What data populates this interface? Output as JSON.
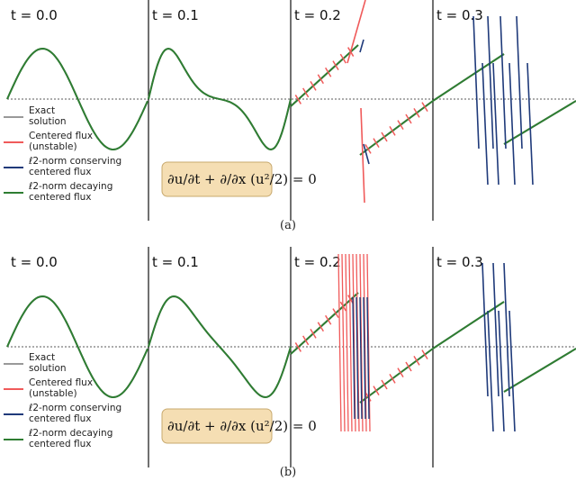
{
  "chart_data": [
    {
      "type": "line",
      "panel_caption": "(a)",
      "equation": "∂u/∂t + ∂/∂x (u²/2) = 0",
      "time_labels": [
        "t = 0.0",
        "t = 0.1",
        "t = 0.2",
        "t = 0.3"
      ],
      "legend": [
        {
          "label": "Exact\nsolution",
          "color": "#999999"
        },
        {
          "label": "Centered flux\n(unstable)",
          "color": "#f05a5a"
        },
        {
          "label": "ℓ2-norm conserving\ncentered flux",
          "color": "#1f3a7a"
        },
        {
          "label": "ℓ2-norm decaying\ncentered flux",
          "color": "#2e7d32"
        }
      ],
      "series": [
        {
          "name": "Exact solution",
          "color": "#999999"
        },
        {
          "name": "Centered flux (unstable)",
          "color": "#f05a5a"
        },
        {
          "name": "ℓ2-norm conserving centered flux",
          "color": "#1f3a7a"
        },
        {
          "name": "ℓ2-norm decaying centered flux",
          "color": "#2e7d32"
        }
      ],
      "baseline": 0,
      "grid": false
    },
    {
      "type": "line",
      "panel_caption": "(b)",
      "equation": "∂u/∂t + ∂/∂x (u²/2) = 0",
      "time_labels": [
        "t = 0.0",
        "t = 0.1",
        "t = 0.2",
        "t = 0.3"
      ],
      "legend": [
        {
          "label": "Exact\nsolution",
          "color": "#999999"
        },
        {
          "label": "Centered flux\n(unstable)",
          "color": "#f05a5a"
        },
        {
          "label": "ℓ2-norm conserving\ncentered flux",
          "color": "#1f3a7a"
        },
        {
          "label": "ℓ2-norm decaying\ncentered flux",
          "color": "#2e7d32"
        }
      ],
      "series": [
        {
          "name": "Exact solution",
          "color": "#999999"
        },
        {
          "name": "Centered flux (unstable)",
          "color": "#f05a5a"
        },
        {
          "name": "ℓ2-norm conserving centered flux",
          "color": "#1f3a7a"
        },
        {
          "name": "ℓ2-norm decaying centered flux",
          "color": "#2e7d32"
        }
      ],
      "baseline": 0,
      "grid": false
    }
  ]
}
